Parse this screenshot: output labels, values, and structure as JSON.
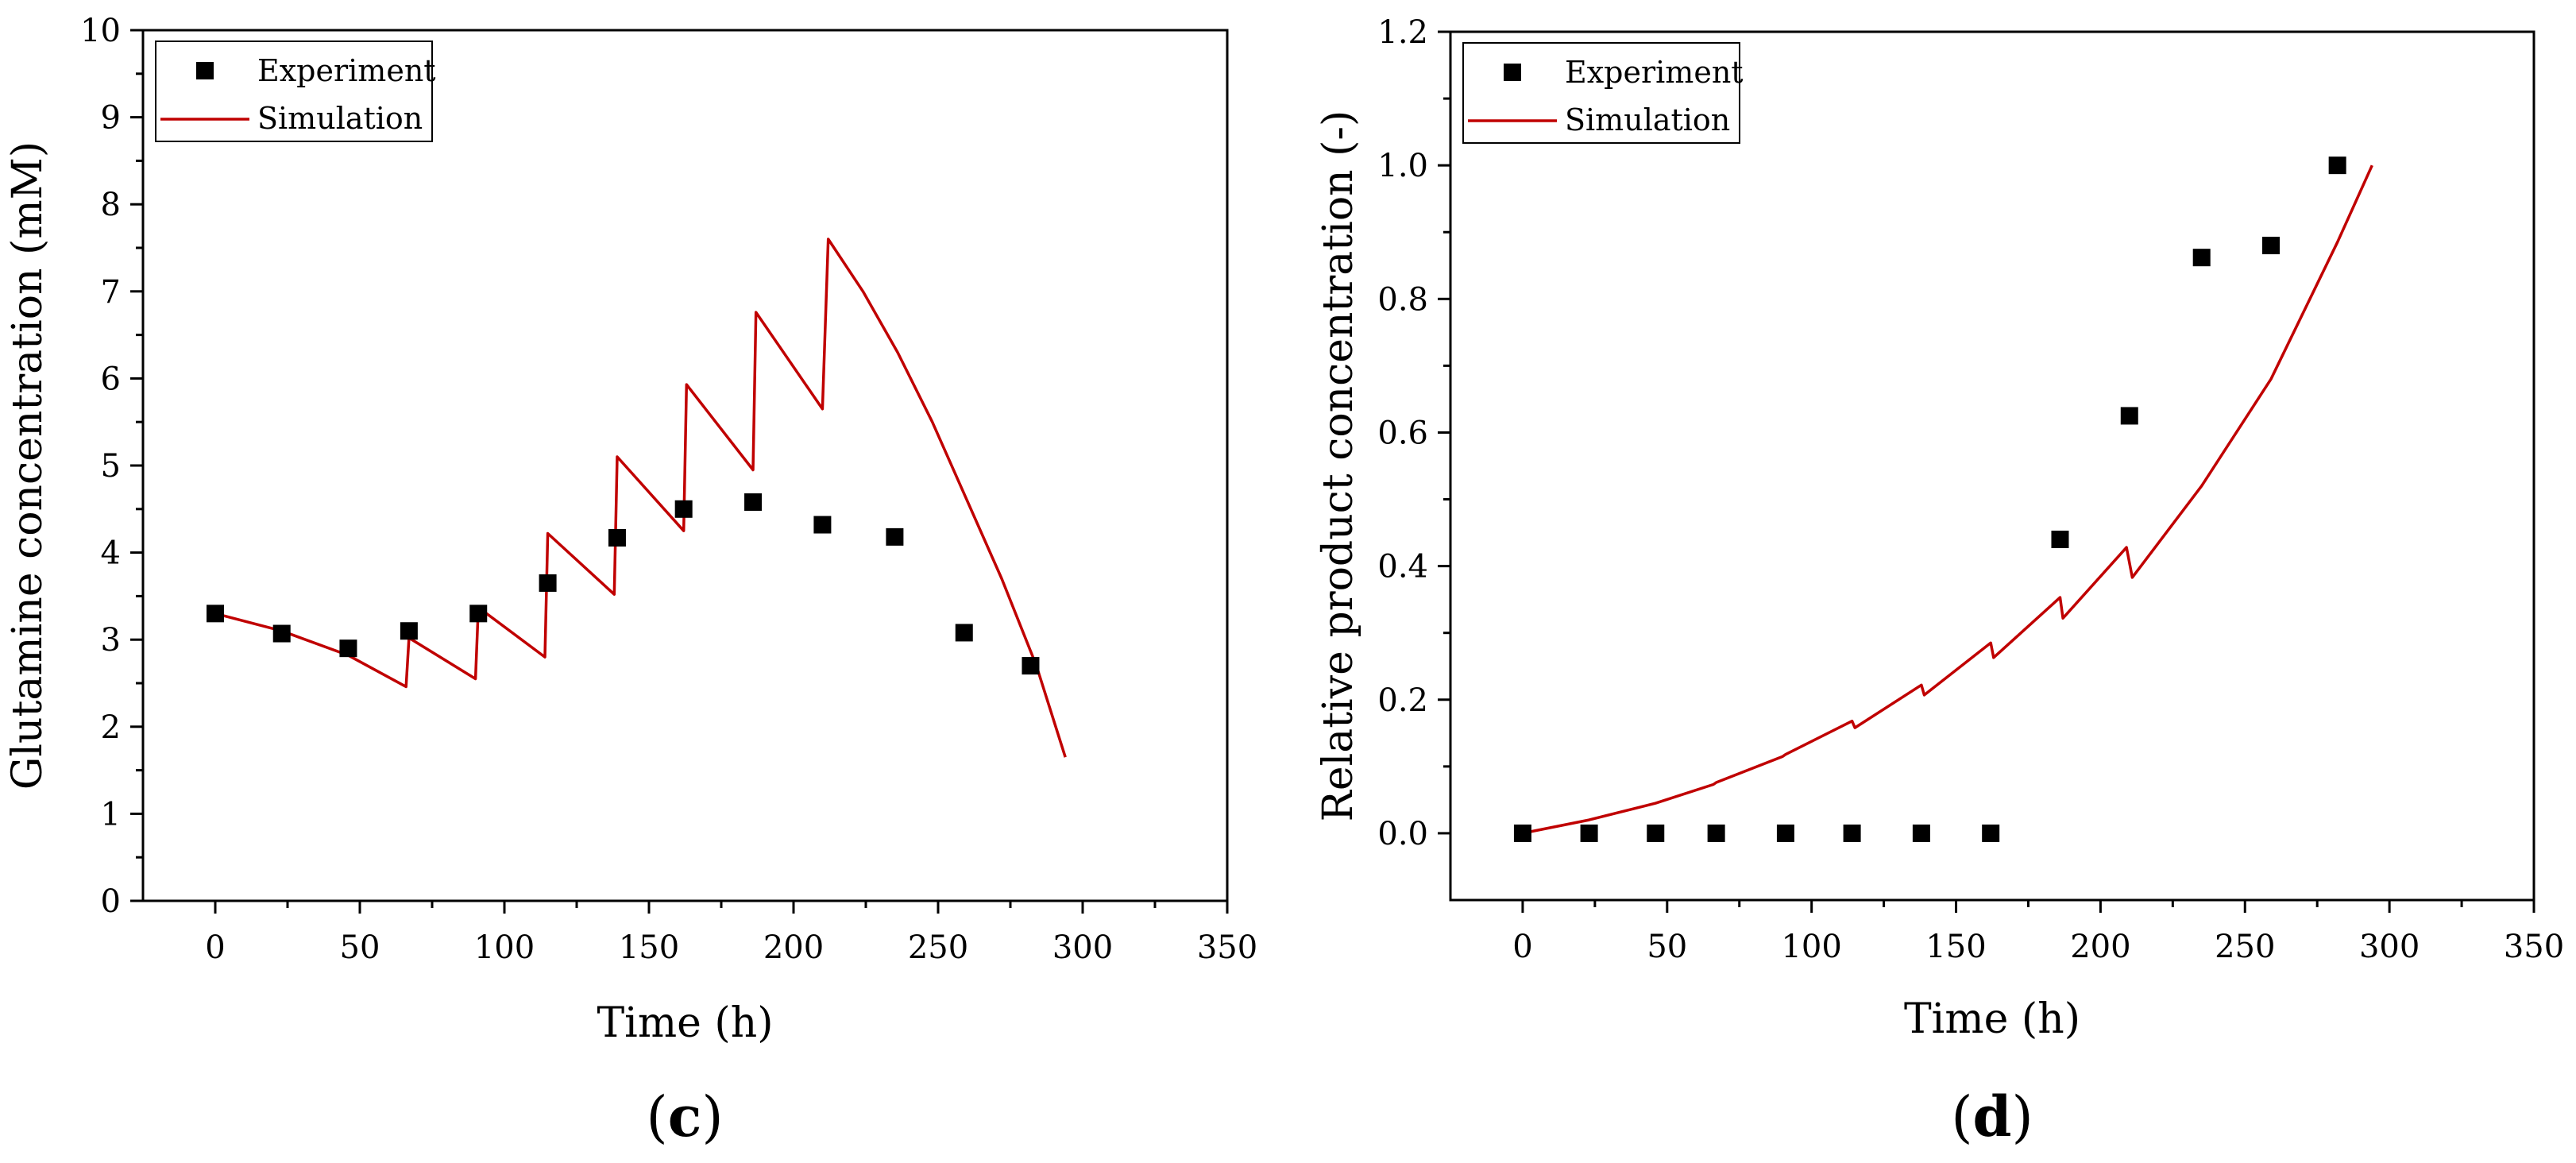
{
  "colors": {
    "simulation": "#c00000",
    "experiment": "#000000",
    "axis": "#000000",
    "background": "#ffffff"
  },
  "chart_data": [
    {
      "type": "scatter+line",
      "panel_label": {
        "open": "(",
        "letter": "c",
        "close": ")"
      },
      "title": "",
      "xlabel": "Time (h)",
      "ylabel": "Glutamine concentration (mM)",
      "xlim": [
        -25,
        350
      ],
      "ylim": [
        0,
        10
      ],
      "xticks": [
        0,
        50,
        100,
        150,
        200,
        250,
        300,
        350
      ],
      "xtick_labels": [
        "0",
        "50",
        "100",
        "150",
        "200",
        "250",
        "300",
        "350"
      ],
      "yticks": [
        0,
        1,
        2,
        3,
        4,
        5,
        6,
        7,
        8,
        9,
        10
      ],
      "ytick_labels": [
        "0",
        "1",
        "2",
        "3",
        "4",
        "5",
        "6",
        "7",
        "8",
        "9",
        "10"
      ],
      "legend_position": "top-left",
      "series": [
        {
          "name": "Experiment",
          "kind": "scatter",
          "x": [
            0,
            23,
            46,
            67,
            91,
            115,
            139,
            162,
            186,
            210,
            235,
            259,
            282
          ],
          "y": [
            3.3,
            3.07,
            2.9,
            3.1,
            3.3,
            3.65,
            4.17,
            4.5,
            4.58,
            4.32,
            4.18,
            3.08,
            2.7
          ]
        },
        {
          "name": "Simulation",
          "kind": "line",
          "x": [
            0,
            23,
            46,
            66,
            67,
            90,
            91,
            114,
            115,
            138,
            139,
            162,
            163,
            186,
            187,
            210,
            212,
            224,
            236,
            248,
            260,
            272,
            284,
            294
          ],
          "y": [
            3.3,
            3.1,
            2.82,
            2.46,
            3.02,
            2.55,
            3.37,
            2.8,
            4.22,
            3.52,
            5.1,
            4.25,
            5.93,
            4.95,
            6.76,
            5.65,
            7.6,
            7.0,
            6.3,
            5.5,
            4.6,
            3.7,
            2.7,
            1.65
          ]
        }
      ]
    },
    {
      "type": "scatter+line",
      "panel_label": {
        "open": "(",
        "letter": "d",
        "close": ")"
      },
      "title": "",
      "xlabel": "Time (h)",
      "ylabel": "Relative product concentration (-)",
      "xlim": [
        -25,
        350
      ],
      "ylim": [
        -0.1,
        1.2
      ],
      "xticks": [
        0,
        50,
        100,
        150,
        200,
        250,
        300,
        350
      ],
      "xtick_labels": [
        "0",
        "50",
        "100",
        "150",
        "200",
        "250",
        "300",
        "350"
      ],
      "yticks": [
        0.0,
        0.2,
        0.4,
        0.6,
        0.8,
        1.0,
        1.2
      ],
      "ytick_labels": [
        "0.0",
        "0.2",
        "0.4",
        "0.6",
        "0.8",
        "1.0",
        "1.2"
      ],
      "legend_position": "top-left",
      "series": [
        {
          "name": "Experiment",
          "kind": "scatter",
          "x": [
            0,
            23,
            46,
            67,
            91,
            114,
            138,
            162,
            186,
            210,
            235,
            259,
            282
          ],
          "y": [
            0,
            0,
            0,
            0,
            0,
            0,
            0,
            0,
            0.44,
            0.625,
            0.862,
            0.88,
            1.0
          ]
        },
        {
          "name": "Simulation",
          "kind": "line",
          "x": [
            0,
            23,
            46,
            66,
            67,
            90,
            91,
            114,
            115,
            138,
            139,
            162,
            163,
            186,
            187,
            209,
            211,
            235,
            259,
            282,
            294
          ],
          "y": [
            0,
            0.02,
            0.045,
            0.073,
            0.076,
            0.115,
            0.118,
            0.168,
            0.158,
            0.222,
            0.207,
            0.285,
            0.263,
            0.353,
            0.322,
            0.428,
            0.383,
            0.52,
            0.68,
            0.885,
            1.0
          ]
        }
      ]
    }
  ]
}
